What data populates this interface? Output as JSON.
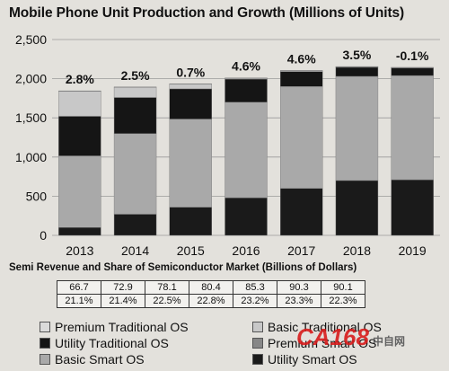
{
  "chart_data": {
    "type": "bar",
    "stacked": true,
    "title": "Mobile Phone Unit Production and Growth (Millions of Units)",
    "categories": [
      "2013",
      "2014",
      "2015",
      "2016",
      "2017",
      "2018",
      "2019"
    ],
    "ylim": [
      0,
      2500
    ],
    "yticks": [
      0,
      500,
      1000,
      1500,
      2000,
      2500
    ],
    "ytick_labels": [
      "0",
      "500",
      "1,000",
      "1,500",
      "2,000",
      "2,500"
    ],
    "series": [
      {
        "name": "Utility Smart OS",
        "color": "#1a1a1a",
        "values": [
          100,
          270,
          360,
          480,
          600,
          700,
          710
        ]
      },
      {
        "name": "Basic Smart OS",
        "color": "#a9a9a9",
        "values": [
          915,
          1030,
          1125,
          1220,
          1300,
          1330,
          1330
        ]
      },
      {
        "name": "Utility Traditional OS",
        "color": "#151515",
        "values": [
          505,
          460,
          385,
          295,
          190,
          115,
          95
        ]
      },
      {
        "name": "Premium Smart OS",
        "color": "#878787",
        "values": [
          0,
          0,
          0,
          0,
          0,
          0,
          0
        ]
      },
      {
        "name": "Basic Traditional OS",
        "color": "#c8c8c8",
        "values": [
          320,
          130,
          60,
          10,
          10,
          5,
          5
        ]
      },
      {
        "name": "Premium Traditional OS",
        "color": "#dadada",
        "values": [
          5,
          5,
          5,
          5,
          5,
          5,
          5
        ]
      }
    ],
    "growth_labels": [
      "2.8%",
      "2.5%",
      "0.7%",
      "4.6%",
      "4.6%",
      "3.5%",
      "-0.1%"
    ],
    "grid": true,
    "legend_position": "bottom"
  },
  "table": {
    "title": "Semi Revenue and Share of Semiconductor Market (Billions of Dollars)",
    "revenue": [
      "66.7",
      "72.9",
      "78.1",
      "80.4",
      "85.3",
      "90.3",
      "90.1"
    ],
    "share": [
      "21.1%",
      "21.4%",
      "22.5%",
      "22.8%",
      "23.2%",
      "23.3%",
      "22.3%"
    ]
  },
  "legend": [
    {
      "label": "Premium Traditional OS",
      "color": "#dadada"
    },
    {
      "label": "Basic Traditional OS",
      "color": "#c8c8c8"
    },
    {
      "label": "Utility Traditional OS",
      "color": "#151515"
    },
    {
      "label": "Premium Smart OS",
      "color": "#878787"
    },
    {
      "label": "Basic Smart OS",
      "color": "#a9a9a9"
    },
    {
      "label": "Utility Smart OS",
      "color": "#1a1a1a"
    }
  ],
  "watermark": {
    "text": "CA168",
    "sub": "中自网"
  }
}
